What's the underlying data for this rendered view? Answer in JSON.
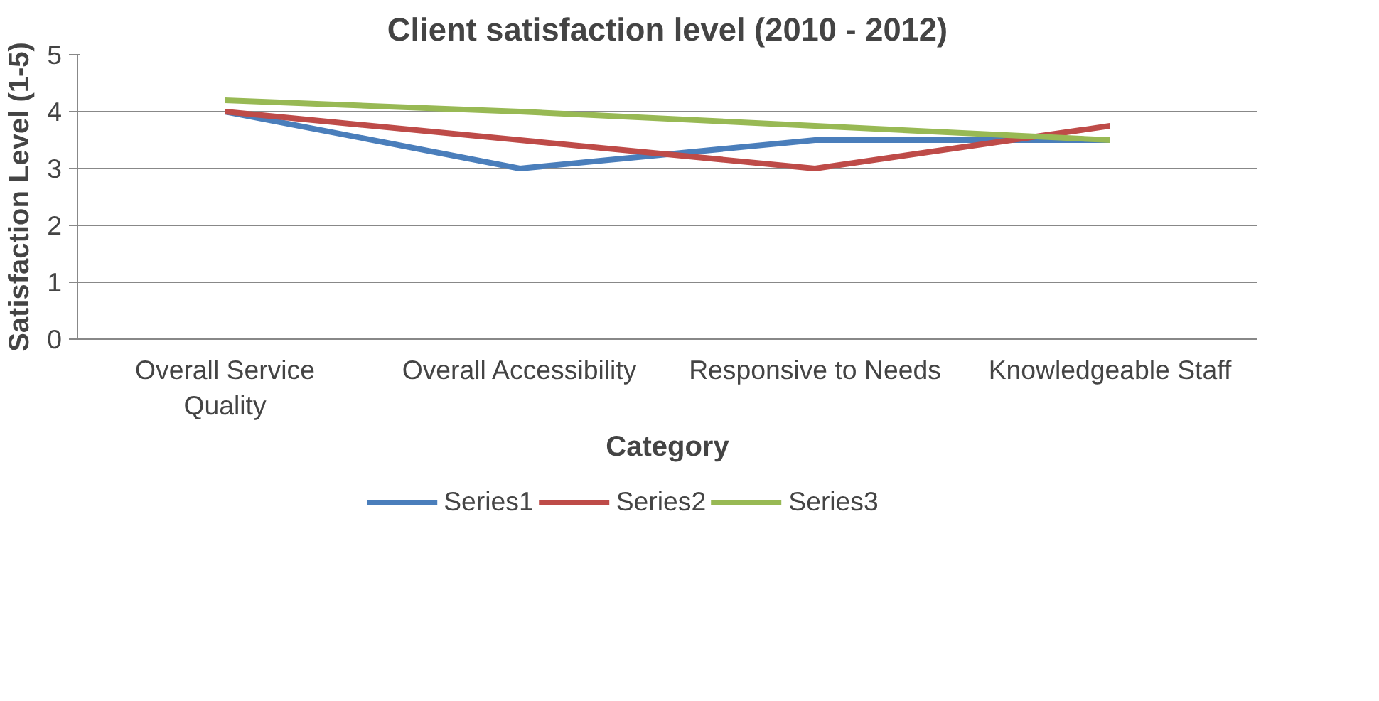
{
  "chart_data": {
    "type": "line",
    "title": "Client satisfaction level (2010 - 2012)",
    "xlabel": "Category",
    "ylabel": "Satisfaction Level (1-5)",
    "categories": [
      "Overall Service Quality",
      "Overall Accessibility",
      "Responsive to Needs",
      "Knowledgeable Staff"
    ],
    "series": [
      {
        "name": "Series1",
        "color": "#4a7ebb",
        "values": [
          4,
          3,
          3.5,
          3.5
        ]
      },
      {
        "name": "Series2",
        "color": "#be4b48",
        "values": [
          4,
          3.5,
          3,
          3.75
        ]
      },
      {
        "name": "Series3",
        "color": "#98b954",
        "values": [
          4.2,
          4,
          3.75,
          3.5
        ]
      }
    ],
    "ylim": [
      0,
      5
    ],
    "yticks": [
      0,
      1,
      2,
      3,
      4,
      5
    ],
    "grid": "y",
    "legend": "bottom",
    "marker": "none",
    "line_style": "solid"
  }
}
